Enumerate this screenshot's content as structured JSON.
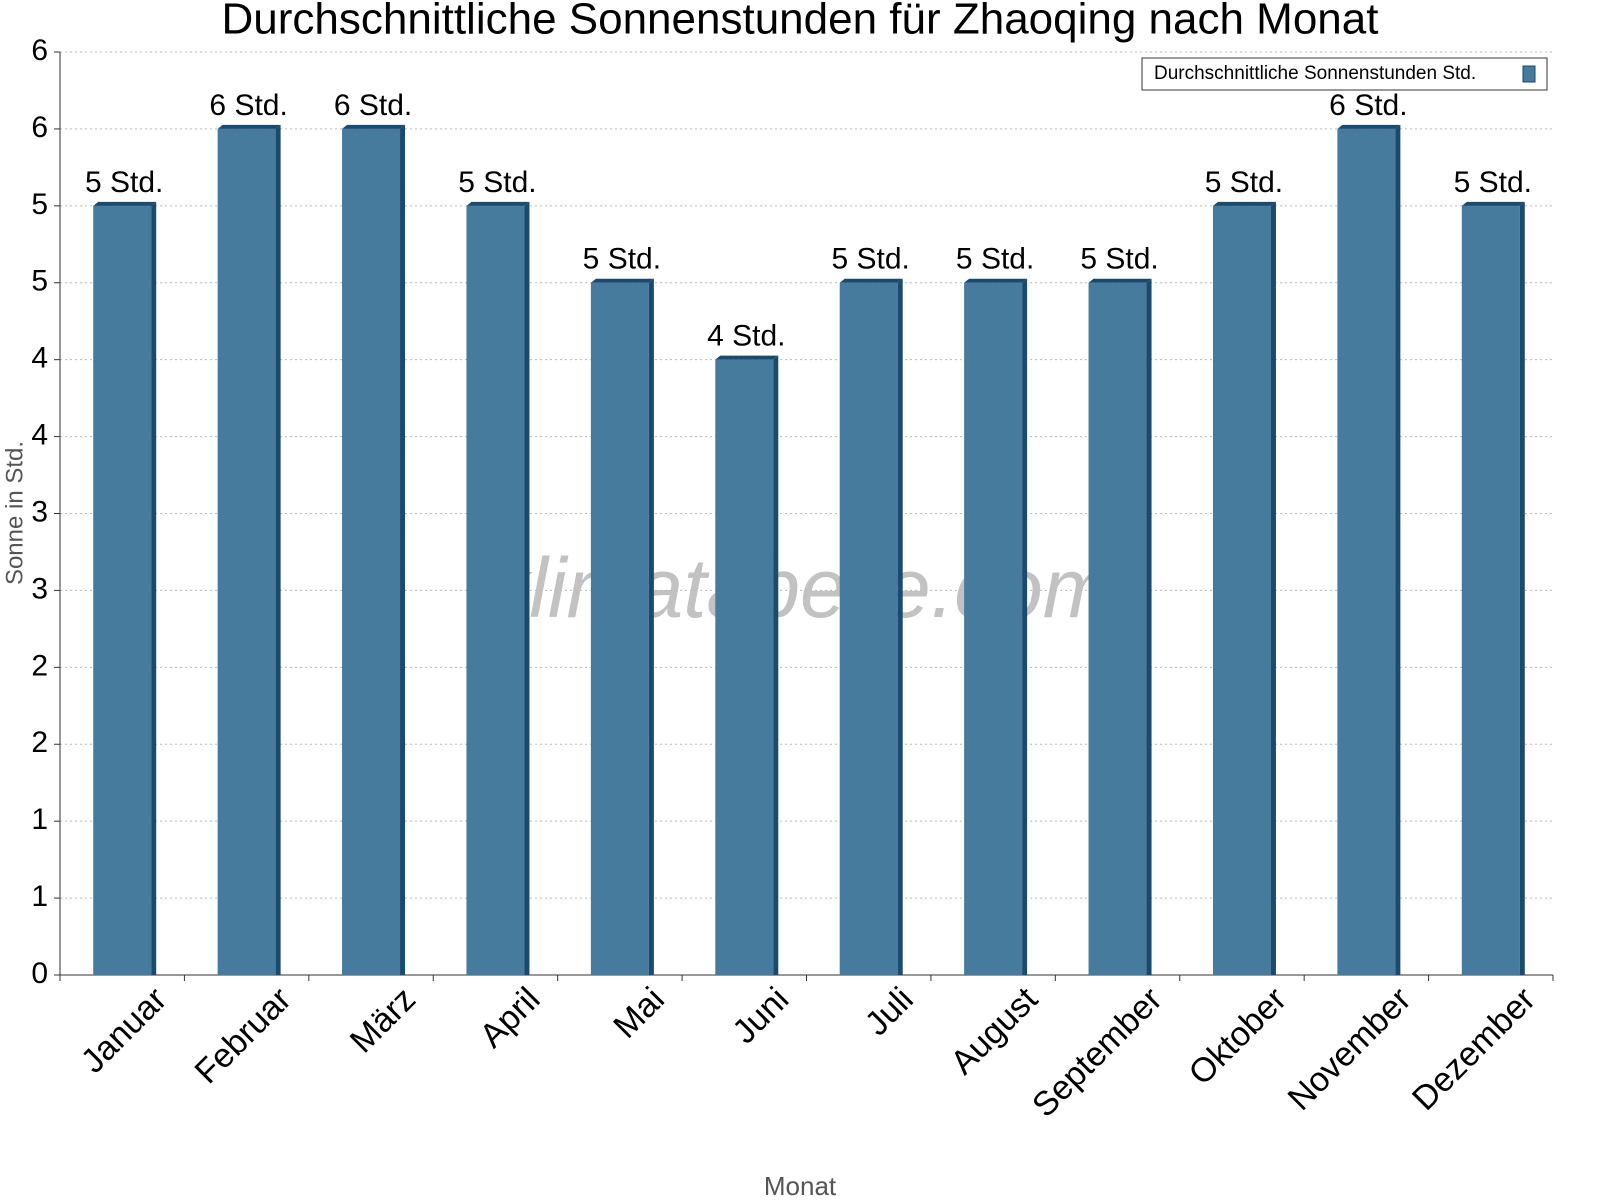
{
  "chart_data": {
    "type": "bar",
    "title": "Durchschnittliche Sonnenstunden für Zhaoqing nach Monat",
    "x_label": "Monat",
    "y_label": "Sonne in Std.",
    "watermark": "klimatabelle.com",
    "categories": [
      "Januar",
      "Februar",
      "März",
      "April",
      "Mai",
      "Juni",
      "Juli",
      "August",
      "September",
      "Oktober",
      "November",
      "Dezember"
    ],
    "series": [
      {
        "name": "Durchschnittliche Sonnenstunden Std.",
        "color": "#467b9e",
        "values": [
          5.0,
          5.5,
          5.5,
          5.0,
          4.5,
          4.0,
          4.5,
          4.5,
          4.5,
          5.0,
          5.5,
          5.0
        ],
        "value_labels": [
          "5 Std.",
          "6 Std.",
          "6 Std.",
          "5 Std.",
          "5 Std.",
          "4 Std.",
          "5 Std.",
          "5 Std.",
          "5 Std.",
          "5 Std.",
          "6 Std.",
          "5 Std."
        ]
      }
    ],
    "ylim": [
      0,
      6
    ],
    "yticks": [
      0,
      {
        "value": 0.5,
        "label": "1"
      },
      1,
      {
        "value": 1.5,
        "label": "2"
      },
      2,
      {
        "value": 2.5,
        "label": "3"
      },
      3,
      {
        "value": 3.5,
        "label": "4"
      },
      4,
      {
        "value": 4.5,
        "label": "5"
      },
      5,
      {
        "value": 5.5,
        "label": "6"
      },
      6
    ],
    "grid": true,
    "legend": "top-right"
  }
}
